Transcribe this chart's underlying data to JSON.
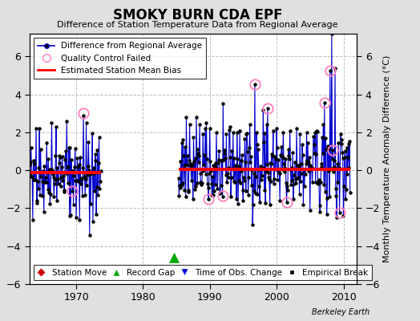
{
  "title": "SMOKY BURN CDA EPF",
  "subtitle": "Difference of Station Temperature Data from Regional Average",
  "ylabel": "Monthly Temperature Anomaly Difference (°C)",
  "credit": "Berkeley Earth",
  "ylim": [
    -6,
    7.2
  ],
  "yticks": [
    -6,
    -4,
    -2,
    0,
    2,
    4,
    6
  ],
  "xlim": [
    1963.0,
    2012.0
  ],
  "xticks": [
    1970,
    1980,
    1990,
    2000,
    2010
  ],
  "gap_start": 1973.7,
  "gap_end": 1985.3,
  "bias_y1": -0.12,
  "bias_y2": 0.05,
  "record_gap_x": 1984.6,
  "record_gap_y": -4.6,
  "qc_failed_points": [
    [
      1969.4,
      -1.1
    ],
    [
      1971.1,
      3.0
    ],
    [
      1989.8,
      -1.5
    ],
    [
      1991.9,
      -1.35
    ],
    [
      1996.7,
      4.55
    ],
    [
      1998.6,
      3.25
    ],
    [
      2001.5,
      -1.7
    ],
    [
      2007.1,
      3.55
    ],
    [
      2008.0,
      5.25
    ],
    [
      2008.4,
      1.05
    ],
    [
      2009.4,
      -2.25
    ]
  ],
  "line_color": "#0000cc",
  "dot_color": "#000000",
  "bias_color": "#ff0000",
  "qc_color": "#ff80c0",
  "bg_color": "#e0e0e0",
  "plot_bg": "#ffffff",
  "grid_color": "#c0c0c0",
  "seed": 42
}
